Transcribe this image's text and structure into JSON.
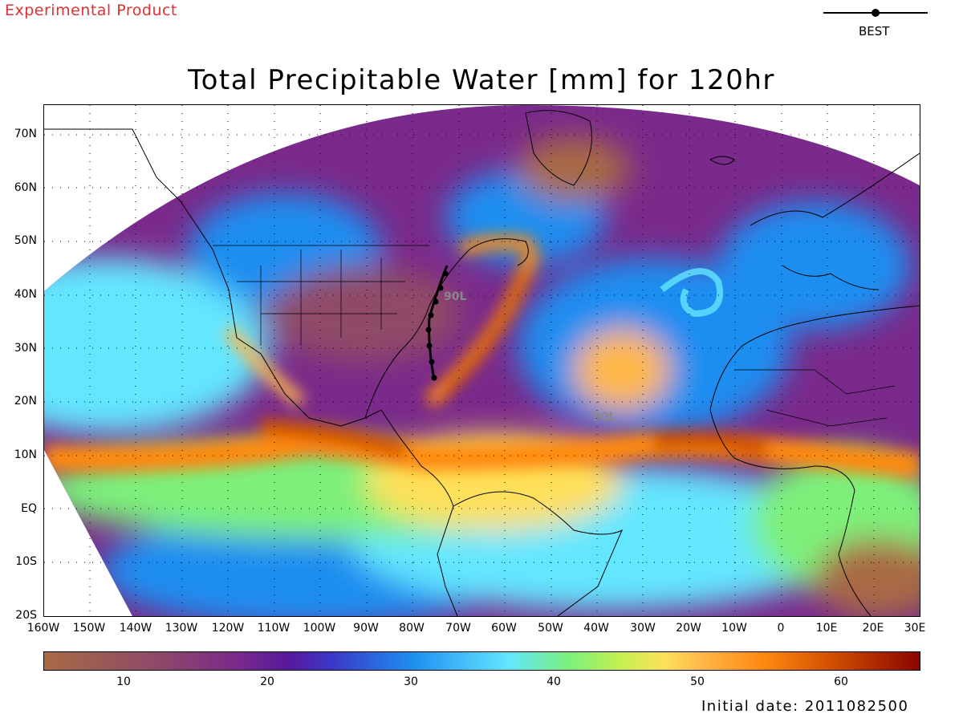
{
  "header": {
    "experimental_label": "Experimental Product",
    "legend_label": "BEST",
    "title": "Total Precipitable Water [mm] for 120hr"
  },
  "map": {
    "lat_labels": [
      "70N",
      "60N",
      "50N",
      "40N",
      "30N",
      "20N",
      "10N",
      "EQ",
      "10S",
      "20S"
    ],
    "lon_labels": [
      "160W",
      "150W",
      "140W",
      "130W",
      "120W",
      "110W",
      "100W",
      "90W",
      "80W",
      "70W",
      "60W",
      "50W",
      "40W",
      "30W",
      "20W",
      "10W",
      "0",
      "10E",
      "20E",
      "30E"
    ],
    "storms": [
      {
        "name": "90L",
        "lon": -74.0,
        "lat": 40.0
      },
      {
        "name": "90L",
        "lon": -35.0,
        "lat": 17.5
      }
    ],
    "colors": {
      "very_dry": "#a86a45",
      "dry": "#7a2a8a",
      "moist": "#1e8ef0",
      "wet": "#63e6ff",
      "very_wet": "#ff8a10",
      "extreme": "#8a0600"
    }
  },
  "colorbar": {
    "ticks": [
      "10",
      "20",
      "30",
      "40",
      "50",
      "60"
    ],
    "range": [
      4.5,
      65.5
    ]
  },
  "footer": {
    "initial_date": "Initial date: 2011082500"
  }
}
